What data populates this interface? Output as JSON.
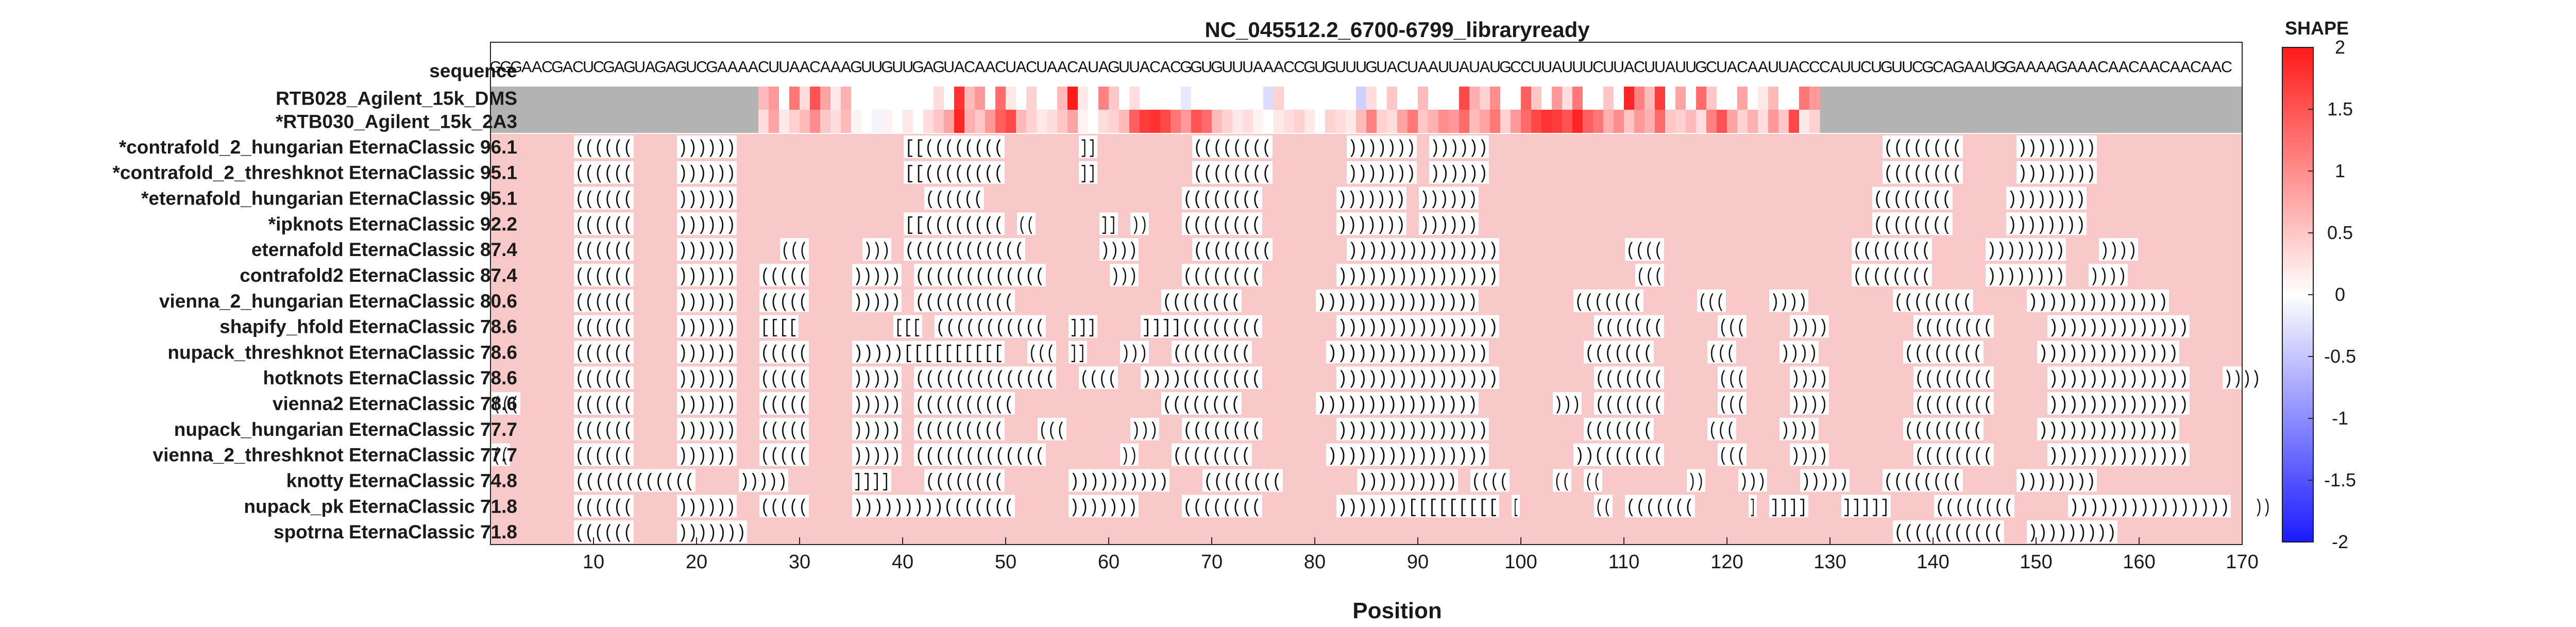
{
  "chart_data": {
    "type": "heatmap",
    "title": "NC_045512.2_6700-6799_libraryready",
    "xlabel": "Position",
    "x_range": [
      1,
      170
    ],
    "x_ticks": [
      10,
      20,
      30,
      40,
      50,
      60,
      70,
      80,
      90,
      100,
      110,
      120,
      130,
      140,
      150,
      160,
      170
    ],
    "sequence_label": "sequence",
    "sequence": "GGGAACGACUCGAGUAGAGUCGAAAACUUAACAAAGUUGUUGAGUACAACUACUAACAUAGUUACACGGUGUUUAAACCGUGUUUGUACUAAUUAUAUGCCUUAUUUCUUACUUAUUGCUACAAUUACCCAUUCUGUUCGCAGAAUGGAAAAGAAACAACAACAACAAC",
    "reactivity_rows": [
      {
        "label": "RTB028_Agilent_15k_DMS",
        "start": 27,
        "end": 129,
        "values": [
          0.6,
          0.9,
          0.0,
          1.2,
          0.3,
          1.5,
          0.8,
          0.2,
          0.7,
          0.0,
          0.0,
          0.0,
          0.0,
          0.0,
          0.0,
          0.0,
          0.0,
          0.3,
          0.0,
          1.8,
          0.6,
          0.9,
          0.0,
          1.3,
          0.2,
          0.0,
          0.4,
          0.0,
          0.0,
          0.6,
          2.0,
          0.2,
          0.0,
          1.1,
          0.5,
          0.0,
          0.3,
          0.0,
          0.0,
          0.0,
          0.0,
          -0.2,
          0.0,
          0.0,
          0.0,
          0.0,
          0.0,
          0.0,
          0.0,
          -0.3,
          0.4,
          0.0,
          0.0,
          0.0,
          0.0,
          0.0,
          0.0,
          0.0,
          -0.4,
          0.3,
          0.0,
          0.5,
          0.0,
          0.0,
          0.6,
          0.0,
          0.0,
          0.0,
          1.6,
          0.7,
          0.4,
          1.0,
          0.0,
          0.0,
          1.4,
          0.5,
          0.0,
          0.9,
          0.3,
          1.2,
          0.0,
          0.0,
          0.5,
          0.0,
          1.9,
          1.1,
          0.6,
          1.7,
          0.0,
          0.8,
          0.0,
          1.3,
          0.5,
          0.0,
          0.0,
          0.8,
          0.0,
          0.2,
          0.6,
          0.0,
          0.0,
          1.2,
          0.9
        ]
      },
      {
        "label": "*RTB030_Agilent_15k_2A3",
        "start": 27,
        "end": 129,
        "values": [
          0.3,
          0.8,
          0.2,
          0.4,
          0.6,
          1.0,
          0.5,
          0.3,
          0.6,
          0.1,
          0.0,
          -0.1,
          0.1,
          0.0,
          0.2,
          0.0,
          0.3,
          0.5,
          0.8,
          1.9,
          0.7,
          0.5,
          0.9,
          1.4,
          1.6,
          0.6,
          0.4,
          0.2,
          0.3,
          0.5,
          0.8,
          0.1,
          0.0,
          0.3,
          0.4,
          0.6,
          1.4,
          1.7,
          1.8,
          1.6,
          1.2,
          0.9,
          1.5,
          1.3,
          0.6,
          0.4,
          0.2,
          0.3,
          0.1,
          0.0,
          0.2,
          0.3,
          0.4,
          0.2,
          0.0,
          0.4,
          0.3,
          0.2,
          0.6,
          1.1,
          0.4,
          0.3,
          0.8,
          1.2,
          0.5,
          0.7,
          1.0,
          0.9,
          1.3,
          0.6,
          0.8,
          1.2,
          0.4,
          0.9,
          1.3,
          1.6,
          1.8,
          1.7,
          1.5,
          1.9,
          1.4,
          1.2,
          0.7,
          1.0,
          0.5,
          0.9,
          0.7,
          1.3,
          0.5,
          0.4,
          0.6,
          0.3,
          1.1,
          1.5,
          0.8,
          0.4,
          0.7,
          0.3,
          0.9,
          0.5,
          1.6,
          0.2,
          0.4
        ]
      }
    ],
    "structure_rows": [
      {
        "label": "*contrafold_2_hungarian EternaClassic",
        "score": "96.1",
        "structure": "........((((((....))))))................[[((((((((.......]].........((((((((.......))))))).))))))......................................((((((((.....))))))))....................."
      },
      {
        "label": "*contrafold_2_threshknot EternaClassic",
        "score": "95.1",
        "structure": "........((((((....))))))................[[((((((((.......]].........((((((((.......))))))).))))))......................................((((((((.....))))))))....................."
      },
      {
        "label": "*eternafold_hungarian EternaClassic",
        "score": "95.1",
        "structure": "........((((((....))))))..................((((((...................((((((((.......))))))).))))))......................................((((((((.....))))))))....................."
      },
      {
        "label": "*ipknots EternaClassic",
        "score": "92.2",
        "structure": "........((((((....))))))................[[((((((((.((......]].))...((((((((.......))))))).))))))......................................((((((((.....))))))))....................."
      },
      {
        "label": "eternafold EternaClassic",
        "score": "87.4",
        "structure": "........((((((....))))))....(((.....))).((((((((((((.......)))).....((((((((.......)))))))))))))))............((((..................((((((((.....))))))))...)))).................."
      },
      {
        "label": "contrafold2 EternaClassic",
        "score": "87.4",
        "structure": "........((((((....))))))..(((((....))))).(((((((((((((......)))....((((((((.......)))))))))))))))).............(((..................((((((((.....))))))))..))))..................."
      },
      {
        "label": "vienna_2_hungarian EternaClassic",
        "score": "80.6",
        "structure": "........((((((....))))))..(((((....))))).((((((((((..............((((((((.......)))))))))))))))).........(((((((.....(((....))))........((((((((.....))))))))))))))................"
      },
      {
        "label": "shapify_hfold EternaClassic",
        "score": "78.6",
        "structure": "........((((((....))))))..[[[[.........[[[.(((((((((((..]]]....]]]]((((((((.......)))))))))))))))).........(((((((.....(((....))))........((((((((.....))))))))))))))................"
      },
      {
        "label": "nupack_threshknot EternaClassic",
        "score": "78.6",
        "structure": "........((((((....))))))..(((((....)))))[[[[[[[[[[..(((.]]...)))..((((((((.......)))))))))))))))).........(((((((.....(((....))))........((((((((.....))))))))))))))................"
      },
      {
        "label": "hotknots EternaClassic",
        "score": "78.6",
        "structure": "........((((((....))))))..(((((....))))).((((((((((((((..((((..))))((((((((.......)))))))))))))))).........(((((((.....(((....))))........((((((((.....))))))))))))))...))))......"
      },
      {
        "label": "vienna2 EternaClassic",
        "score": "78.6",
        "structure": "(((.....((((((....))))))..(((((....))))).((((((((((..............((((((((.......)))))))))))))))).......))).(((((((.....(((....))))........((((((((.....))))))))))))))................"
      },
      {
        "label": "nupack_hungarian EternaClassic",
        "score": "77.7",
        "structure": "........((((((....))))))..(((((....))))).(((((((((...(((......)))..((((((((.......))))))))))))))).........(((((((.....(((....))))........((((((((.....))))))))))))))................"
      },
      {
        "label": "vienna_2_threshknot EternaClassic",
        "score": "77.7",
        "structure": "((......((((((....))))))..(((((....))))).(((((((((((((.......))...((((((((.......))))))))))))))))........))(((((((.....(((....))))........((((((((.....))))))))))))))................"
      },
      {
        "label": "knotty EternaClassic",
        "score": "74.8",
        "structure": "........((((((((((((....)))))......]]]]...((((((((......))))))))))...((((((((.......)))))))))).((((....((.((........))...)))...)))))...((((((((.....))))))))....................."
      },
      {
        "label": "nupack_pk EternaClassic",
        "score": "71.8",
        "structure": "........((((((....))))))..(((((....)))))))))(((((((.....)))))))....((((((((.......)))))))[[[[[[[[[.[.......((.(((((((.....].]]]]...]]]]]....((((((((.....))))))))))))))))..))........"
      },
      {
        "label": "spotrna EternaClassic",
        "score": "71.8",
        "structure": "........((((((....)))))))...............................................................................................................(((((((((((..)))))))))......................."
      }
    ],
    "colorbar": {
      "title": "SHAPE",
      "min": -2,
      "max": 2,
      "ticks": [
        2,
        1.5,
        1,
        0.5,
        0,
        -0.5,
        -1,
        -1.5,
        -2
      ]
    },
    "colors": {
      "unpaired_bg": "#f9c9c9",
      "no_data": "#b3b3b3",
      "low": "#1a1aff",
      "mid": "#ffffff",
      "high": "#ff1a1a"
    }
  }
}
